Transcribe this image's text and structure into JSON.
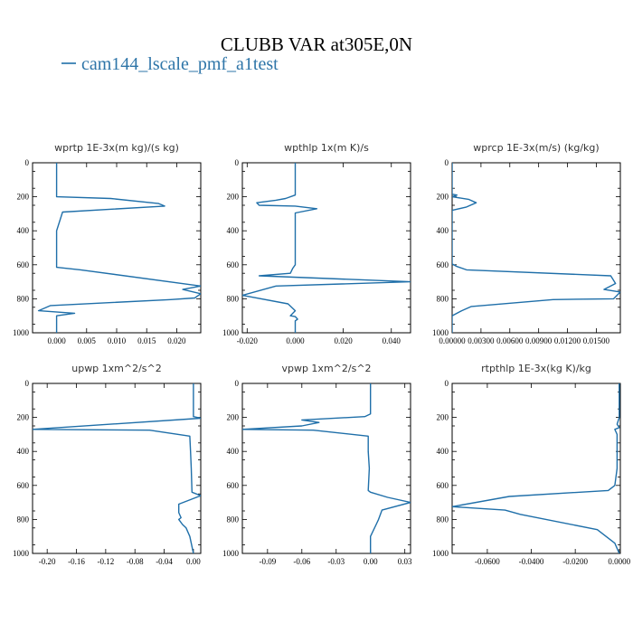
{
  "figure": {
    "title": "CLUBB VAR at305E,0N",
    "legend_label": "cam144_lscale_pmf_a1test",
    "series_color": "#1f6fa9"
  },
  "chart_data": [
    {
      "type": "line",
      "title": "wprtp  1E-3x(m kg)/(s kg)",
      "xlim": [
        -0.004,
        0.024
      ],
      "ylim": [
        1000,
        0
      ],
      "xticks": [
        0.0,
        0.005,
        0.01,
        0.015,
        0.02
      ],
      "xtick_labels": [
        "0.000",
        "0.005",
        "0.010",
        "0.015",
        "0.020"
      ],
      "yticks": [
        0,
        200,
        400,
        600,
        800,
        1000
      ],
      "ytick_labels": [
        "0",
        "200",
        "400",
        "600",
        "800",
        "1000"
      ],
      "series": [
        {
          "x": [
            0.0,
            0.0,
            0.0,
            0.009,
            0.017,
            0.018,
            0.001,
            0.0,
            0.0,
            0.0,
            0.0,
            0.0,
            0.004,
            0.024,
            0.021,
            0.024,
            0.023,
            0.019,
            -0.001,
            -0.003,
            0.003,
            0.0,
            0.0,
            0.0,
            0.0
          ],
          "y": [
            0,
            100,
            200,
            210,
            240,
            255,
            290,
            400,
            500,
            580,
            600,
            615,
            630,
            725,
            745,
            770,
            795,
            805,
            840,
            870,
            885,
            900,
            915,
            930,
            1000
          ]
        }
      ]
    },
    {
      "type": "line",
      "title": "wpthlp  1x(m K)/s",
      "xlim": [
        -0.022,
        0.048
      ],
      "ylim": [
        1000,
        0
      ],
      "xticks": [
        -0.02,
        0.0,
        0.02,
        0.04
      ],
      "xtick_labels": [
        "-0.020",
        "0.000",
        "0.020",
        "0.040"
      ],
      "yticks": [
        0,
        200,
        400,
        600,
        800,
        1000
      ],
      "ytick_labels": [
        "0",
        "200",
        "400",
        "600",
        "800",
        "1000"
      ],
      "series": [
        {
          "x": [
            0.0,
            0.0,
            0.0,
            -0.004,
            -0.008,
            -0.016,
            -0.015,
            0.0,
            0.009,
            0.0,
            0.0,
            0.0,
            0.0,
            -0.001,
            -0.002,
            -0.015,
            0.048,
            -0.008,
            -0.022,
            -0.003,
            0.0,
            -0.002,
            0.0,
            0.001,
            0.0,
            0.0
          ],
          "y": [
            0,
            100,
            190,
            210,
            220,
            235,
            250,
            255,
            270,
            295,
            400,
            500,
            600,
            620,
            650,
            665,
            700,
            725,
            780,
            830,
            870,
            900,
            905,
            920,
            930,
            1000
          ]
        }
      ]
    },
    {
      "type": "line",
      "title": "wprcp  1E-3x(m/s) (kg/kg)",
      "xlim": [
        0.0,
        0.0175
      ],
      "ylim": [
        1000,
        0
      ],
      "xticks": [
        0.0,
        0.003,
        0.006,
        0.009,
        0.012,
        0.015
      ],
      "xtick_labels": [
        "0.00000",
        "0.00300",
        "0.00600",
        "0.00900",
        "0.01200",
        "0.01500"
      ],
      "yticks": [
        0,
        200,
        400,
        600,
        800,
        1000
      ],
      "ytick_labels": [
        "0",
        "200",
        "400",
        "600",
        "800",
        "1000"
      ],
      "series": [
        {
          "x": [
            0.0,
            0.0,
            0.0,
            0.0005,
            0.0,
            0.0017,
            0.0025,
            0.0015,
            0.0,
            0.0,
            0.0,
            0.0,
            0.0005,
            0.0015,
            0.0165,
            0.017,
            0.0158,
            0.0175,
            0.0168,
            0.0105,
            0.002,
            0.001,
            0.0,
            0.0
          ],
          "y": [
            0,
            100,
            185,
            190,
            200,
            215,
            235,
            260,
            280,
            400,
            500,
            595,
            610,
            630,
            665,
            710,
            745,
            760,
            800,
            805,
            845,
            870,
            900,
            1000
          ]
        }
      ]
    },
    {
      "type": "line",
      "title": "upwp  1xm^2/s^2",
      "xlim": [
        -0.22,
        0.01
      ],
      "ylim": [
        1000,
        0
      ],
      "xticks": [
        -0.2,
        -0.16,
        -0.12,
        -0.08,
        -0.04,
        0.0
      ],
      "xtick_labels": [
        "-0.20",
        "-0.16",
        "-0.12",
        "-0.08",
        "-0.04",
        "0.00"
      ],
      "yticks": [
        0,
        200,
        400,
        600,
        800,
        1000
      ],
      "ytick_labels": [
        "0",
        "200",
        "400",
        "600",
        "800",
        "1000"
      ],
      "series": [
        {
          "x": [
            0.0,
            0.0,
            0.0,
            0.01,
            -0.22,
            -0.06,
            -0.005,
            -0.004,
            -0.003,
            -0.002,
            0.01,
            -0.02,
            -0.02,
            -0.017,
            -0.02,
            -0.015,
            -0.01,
            -0.005,
            0.0
          ],
          "y": [
            0,
            100,
            195,
            205,
            270,
            275,
            310,
            400,
            500,
            640,
            660,
            710,
            760,
            790,
            800,
            830,
            850,
            900,
            1000
          ]
        }
      ]
    },
    {
      "type": "line",
      "title": "vpwp  1xm^2/s^2",
      "xlim": [
        -0.112,
        0.035
      ],
      "ylim": [
        1000,
        0
      ],
      "xticks": [
        -0.09,
        -0.06,
        -0.03,
        0.0,
        0.03
      ],
      "xtick_labels": [
        "-0.09",
        "-0.06",
        "-0.03",
        "0.00",
        "0.03"
      ],
      "yticks": [
        0,
        200,
        400,
        600,
        800,
        1000
      ],
      "ytick_labels": [
        "0",
        "200",
        "400",
        "600",
        "800",
        "1000"
      ],
      "series": [
        {
          "x": [
            0.0,
            0.0,
            0.0,
            -0.005,
            -0.06,
            -0.045,
            -0.06,
            -0.112,
            -0.05,
            -0.002,
            -0.002,
            -0.001,
            -0.002,
            0.0,
            0.015,
            0.035,
            0.01,
            0.007,
            0.005,
            0.0,
            0.0
          ],
          "y": [
            0,
            100,
            180,
            195,
            215,
            230,
            250,
            270,
            275,
            310,
            400,
            500,
            630,
            640,
            670,
            700,
            745,
            800,
            830,
            900,
            1000
          ]
        }
      ]
    },
    {
      "type": "line",
      "title": "rtpthlp  1E-3x(kg K)/kg",
      "xlim": [
        -0.076,
        0.0005
      ],
      "ylim": [
        1000,
        0
      ],
      "xticks": [
        -0.06,
        -0.04,
        -0.02,
        0.0
      ],
      "xtick_labels": [
        "-0.0600",
        "-0.0400",
        "-0.0200",
        "0.0000"
      ],
      "yticks": [
        0,
        200,
        400,
        600,
        800,
        1000
      ],
      "ytick_labels": [
        "0",
        "200",
        "400",
        "600",
        "800",
        "1000"
      ],
      "series": [
        {
          "x": [
            0.0,
            0.0,
            -0.001,
            0.0,
            -0.002,
            -0.001,
            -0.001,
            -0.002,
            -0.005,
            -0.05,
            -0.076,
            -0.052,
            -0.045,
            -0.01,
            -0.002,
            0.0
          ],
          "y": [
            0,
            200,
            240,
            260,
            270,
            300,
            500,
            600,
            630,
            665,
            725,
            745,
            770,
            860,
            940,
            1000
          ]
        }
      ]
    }
  ]
}
